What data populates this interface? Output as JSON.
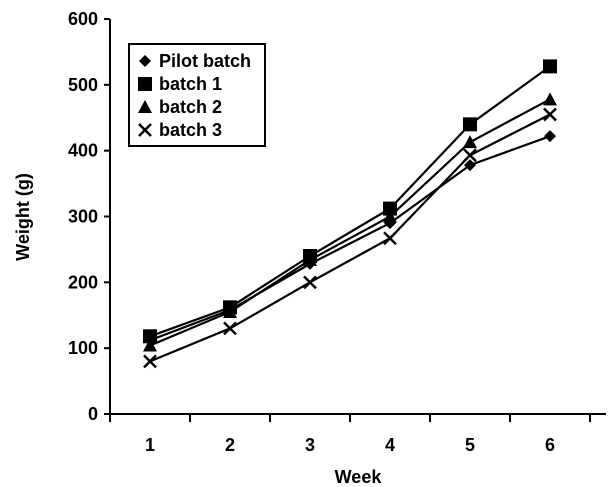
{
  "chart_data": {
    "type": "line",
    "title": "",
    "xlabel": "Week",
    "ylabel": "Weight (g)",
    "x": [
      1,
      2,
      3,
      4,
      5,
      6
    ],
    "xlim": [
      0.5,
      6.7
    ],
    "ylim": [
      0,
      600
    ],
    "yticks": [
      0,
      100,
      200,
      300,
      400,
      500,
      600
    ],
    "grid": false,
    "legend_position": "top-left",
    "line_color": "#000000",
    "series": [
      {
        "name": "Pilot batch",
        "marker": "diamond",
        "values": [
          112,
          158,
          228,
          290,
          378,
          422
        ]
      },
      {
        "name": "batch 1",
        "marker": "square",
        "values": [
          118,
          162,
          240,
          312,
          440,
          528
        ]
      },
      {
        "name": "batch 2",
        "marker": "triangle",
        "values": [
          104,
          155,
          234,
          300,
          413,
          478
        ]
      },
      {
        "name": "batch 3",
        "marker": "x",
        "values": [
          80,
          130,
          200,
          267,
          393,
          455
        ]
      }
    ]
  }
}
